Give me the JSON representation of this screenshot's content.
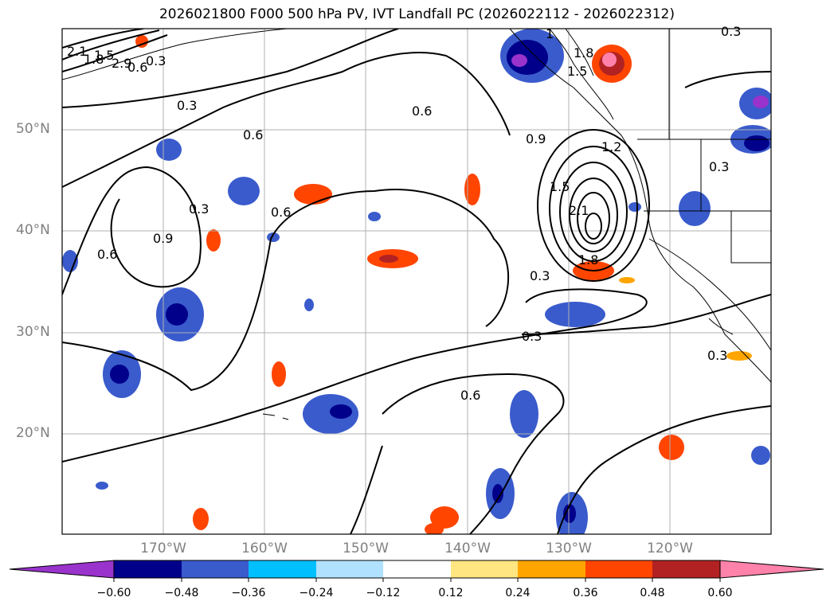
{
  "title": "2026021800 F000 500 hPa PV, IVT Landfall PC (2026022112 - 2026022312)",
  "lat_labels": [
    "50°N",
    "40°N",
    "30°N",
    "20°N"
  ],
  "lon_labels": [
    "170°W",
    "160°W",
    "150°W",
    "140°W",
    "130°W",
    "120°W"
  ],
  "contour_labels": [
    "2.1",
    "1.8",
    "1.5",
    "2.9",
    "0.6",
    "0.3",
    "0.3",
    "0.6",
    "0.6",
    "0.9",
    "0.6",
    "0.3",
    "0.6",
    "0.9",
    "1.5",
    "2.1",
    "1.8",
    "0.3",
    "0.3",
    "0.6",
    "0.3",
    "0.3",
    "1.8",
    "1",
    "1.5",
    "0.3",
    "1.2"
  ],
  "colorbar": {
    "ticks": [
      "−0.60",
      "−0.48",
      "−0.36",
      "−0.24",
      "−0.12",
      "0.12",
      "0.24",
      "0.36",
      "0.48",
      "0.60"
    ],
    "colors": [
      "#9933cc",
      "#00008b",
      "#3a5bcc",
      "#00bfff",
      "#b0e2ff",
      "#ffffff",
      "#ffe680",
      "#ffa500",
      "#ff4500",
      "#b22222",
      "#ff82ab"
    ]
  },
  "shading_colors": {
    "neg_deep": "#00008b",
    "neg_mid": "#3a5bcc",
    "neg_light": "#00bfff",
    "neg_pale": "#b0e2ff",
    "pos_pale": "#ffe680",
    "pos_mid": "#ffa500",
    "pos_strong": "#ff4500",
    "pos_deep": "#b22222",
    "neg_max": "#9933cc",
    "pos_max": "#ff82ab"
  }
}
